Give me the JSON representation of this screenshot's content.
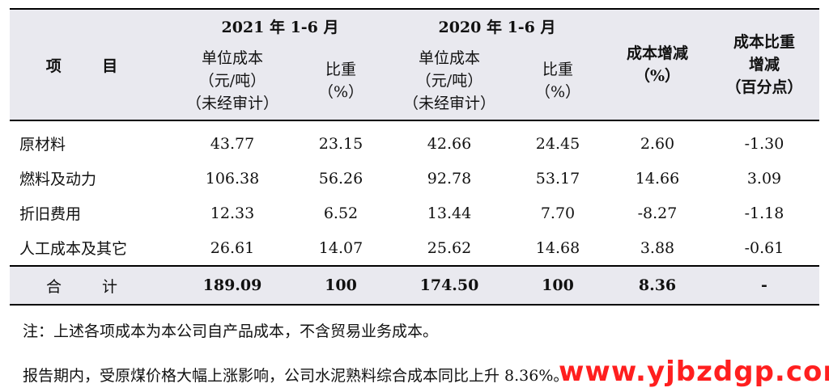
{
  "table": {
    "header": {
      "item": "项 目",
      "period_2021": "2021 年 1-6 月",
      "period_2020": "2020 年 1-6 月",
      "unit_cost_l1": "单位成本",
      "unit_cost_l2": "（元/吨）",
      "unit_cost_l3": "（未经审计）",
      "ratio_l1": "比重",
      "ratio_l2": "（%）",
      "cost_change_l1": "成本增减",
      "cost_change_l2": "（%）",
      "ratio_change_l1": "成本比重",
      "ratio_change_l2": "增减",
      "ratio_change_l3": "（百分点）"
    },
    "rows": [
      {
        "name": "原材料",
        "c2021": "43.77",
        "r2021": "23.15",
        "c2020": "42.66",
        "r2020": "24.45",
        "change": "2.60",
        "ratio_change": "-1.30"
      },
      {
        "name": "燃料及动力",
        "c2021": "106.38",
        "r2021": "56.26",
        "c2020": "92.78",
        "r2020": "53.17",
        "change": "14.66",
        "ratio_change": "3.09"
      },
      {
        "name": "折旧费用",
        "c2021": "12.33",
        "r2021": "6.52",
        "c2020": "13.44",
        "r2020": "7.70",
        "change": "-8.27",
        "ratio_change": "-1.18"
      },
      {
        "name": "人工成本及其它",
        "c2021": "26.61",
        "r2021": "14.07",
        "c2020": "25.62",
        "r2020": "14.68",
        "change": "3.88",
        "ratio_change": "-0.61"
      }
    ],
    "total": {
      "name": "合 计",
      "c2021": "189.09",
      "r2021": "100",
      "c2020": "174.50",
      "r2020": "100",
      "change": "8.36",
      "ratio_change": "-"
    }
  },
  "note": "注：上述各项成本为本公司自产品成本，不含贸易业务成本。",
  "paragraph": "报告期内，受原煤价格大幅上涨影响，公司水泥熟料综合成本同比上升 8.36%。",
  "watermark": "www.yjbzdgp.com"
}
